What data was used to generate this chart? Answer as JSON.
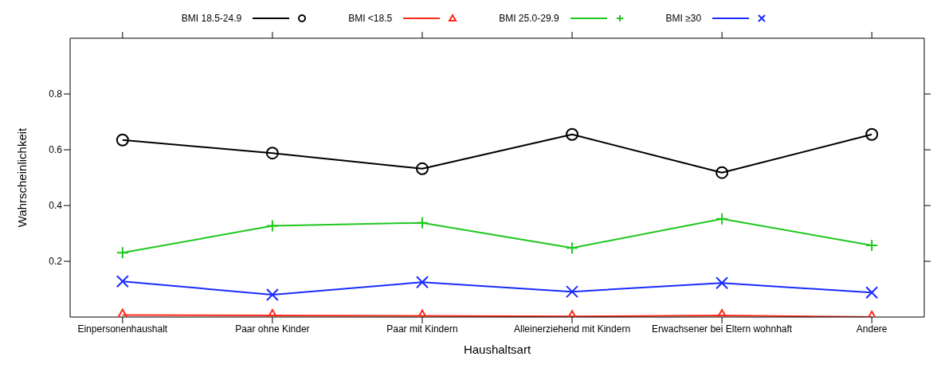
{
  "chart_data": {
    "type": "line",
    "xlabel": "Haushaltsart",
    "ylabel": "Wahrscheinlichkeit",
    "categories": [
      "Einpersonenhaushalt",
      "Paar ohne Kinder",
      "Paar mit Kindern",
      "Alleinerziehend mit Kindern",
      "Erwachsener bei Eltern wohnhaft",
      "Andere"
    ],
    "ylim": [
      0,
      1
    ],
    "yticks": [
      0.2,
      0.4,
      0.6,
      0.8
    ],
    "grid": false,
    "legend": "top",
    "line_style": "solid",
    "series": [
      {
        "name": "BMI 18.5-24.9",
        "color": "#000000",
        "marker": "circle",
        "values": [
          0.635,
          0.588,
          0.532,
          0.655,
          0.518,
          0.655
        ]
      },
      {
        "name": "BMI <18.5",
        "color": "#ff2a1a",
        "marker": "triangle",
        "values": [
          0.007,
          0.006,
          0.004,
          0.002,
          0.006,
          0.0
        ]
      },
      {
        "name": "BMI 25.0-29.9",
        "color": "#1ec81e",
        "marker": "cross",
        "values": [
          0.231,
          0.327,
          0.338,
          0.248,
          0.352,
          0.257
        ]
      },
      {
        "name": "BMI ≥30",
        "color": "#1a2cff",
        "marker": "x",
        "values": [
          0.128,
          0.08,
          0.125,
          0.091,
          0.122,
          0.088
        ]
      }
    ]
  }
}
